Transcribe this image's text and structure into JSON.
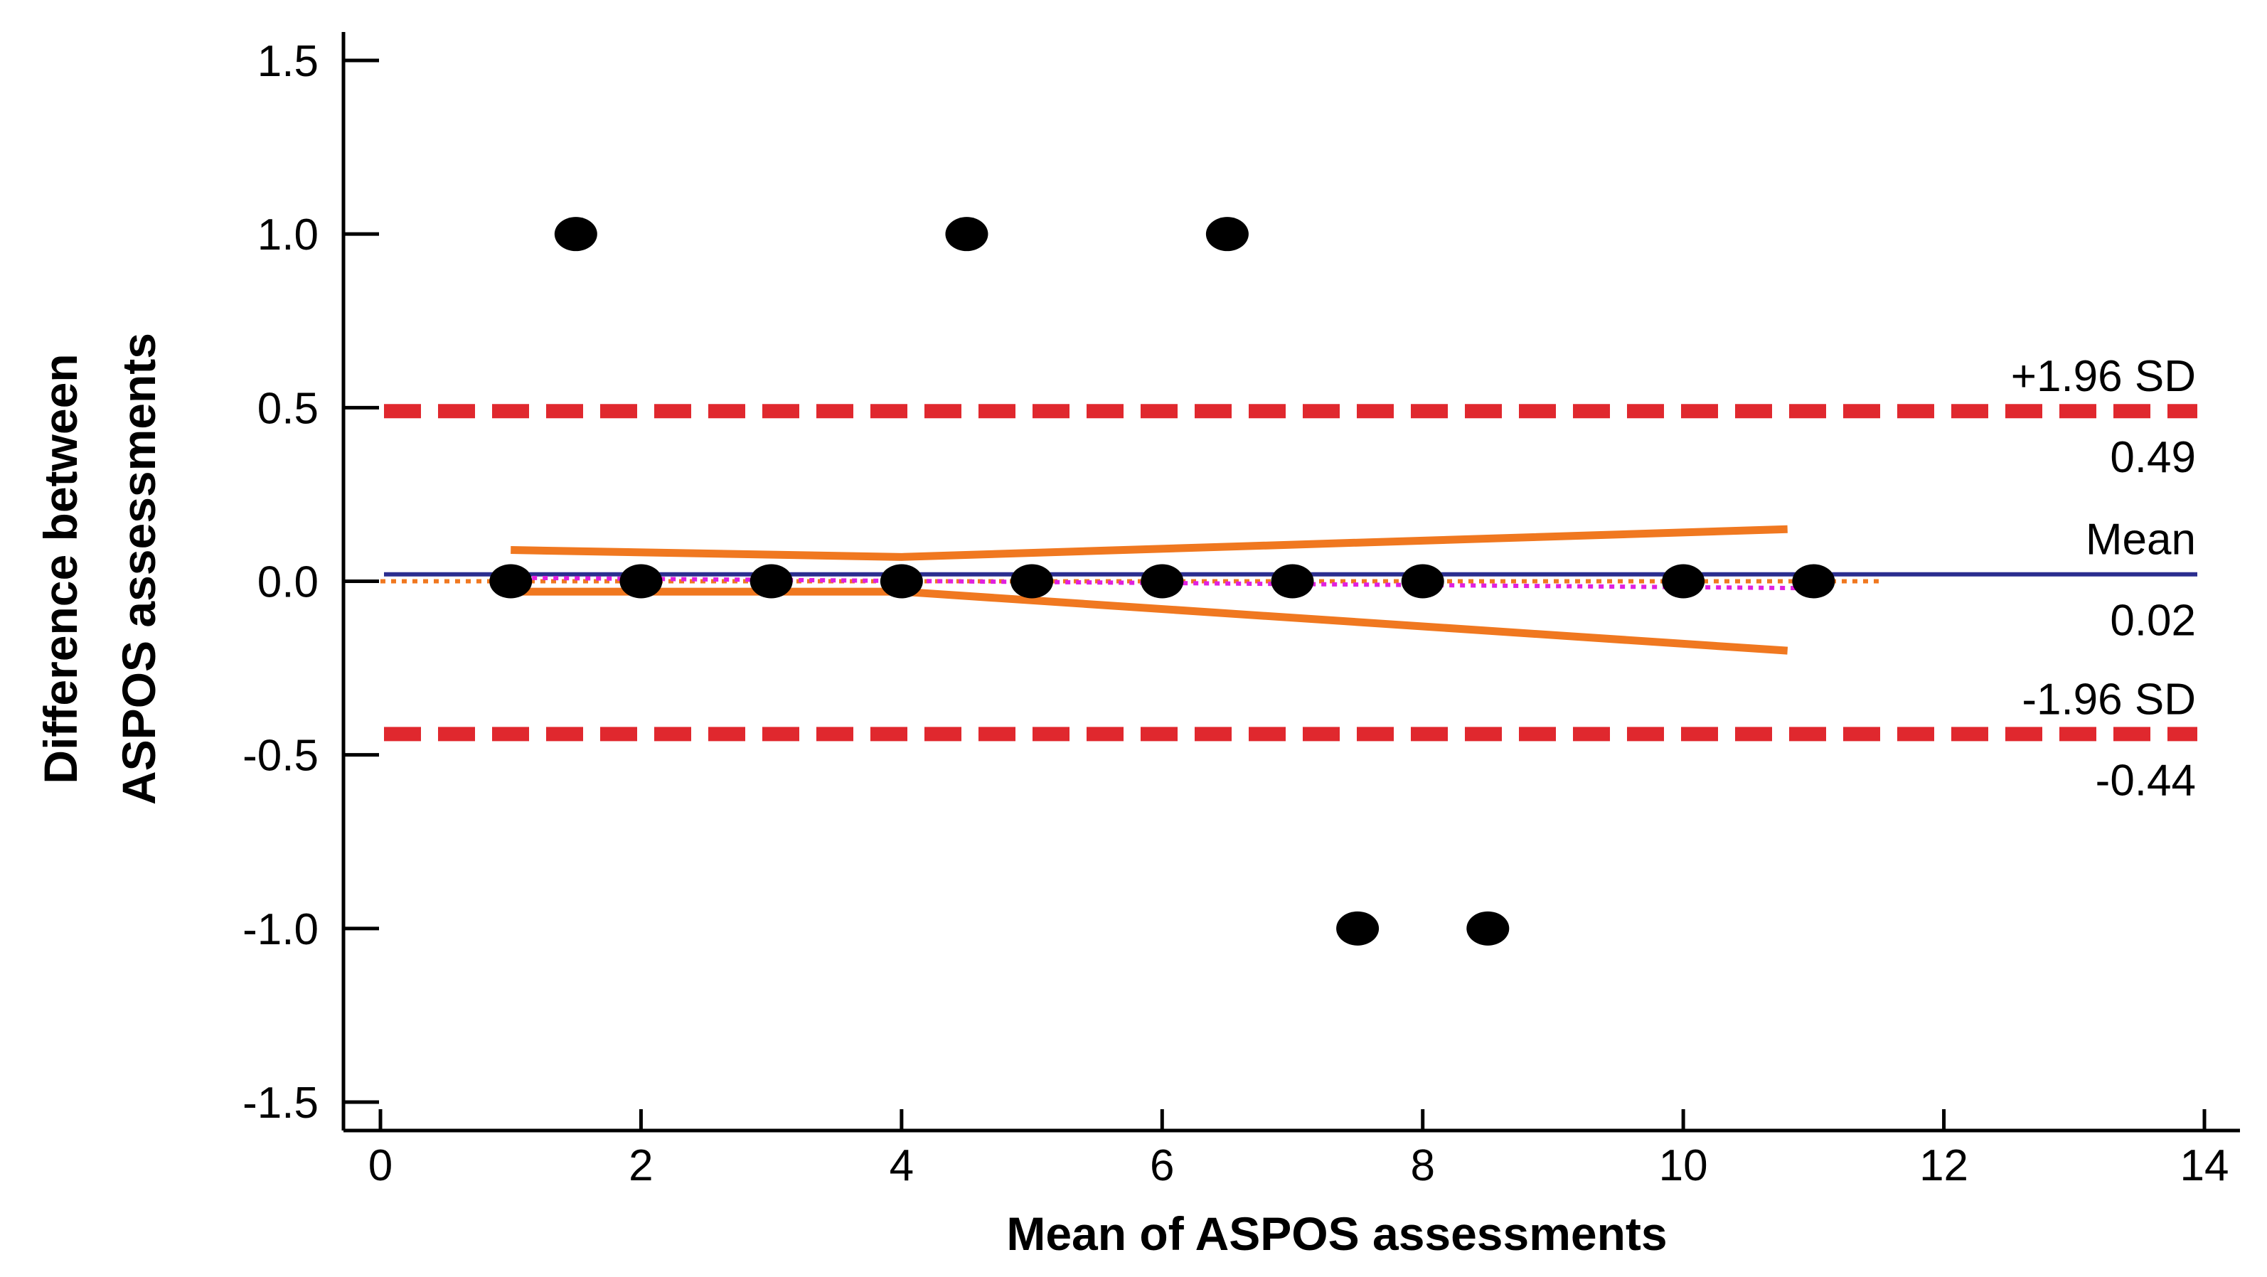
{
  "chart_data": {
    "type": "scatter",
    "title": "",
    "xlabel": "Mean of ASPOS assessments",
    "ylabel_lines": [
      "Difference between",
      "ASPOS assessments"
    ],
    "xlim": [
      0,
      14
    ],
    "ylim": [
      -1.5,
      1.5
    ],
    "x_ticks": [
      0,
      2,
      4,
      6,
      8,
      10,
      12,
      14
    ],
    "x_tick_labels": [
      "0",
      "2",
      "4",
      "6",
      "8",
      "10",
      "12",
      "14"
    ],
    "y_ticks": [
      1.5,
      1.0,
      0.5,
      0.0,
      -0.5,
      -1.0,
      -1.5
    ],
    "y_tick_labels": [
      "1.5",
      "1.0",
      "0.5",
      "0.0",
      "-0.5",
      "-1.0",
      "-1.5"
    ],
    "points": [
      {
        "x": 1.5,
        "y": 1.0
      },
      {
        "x": 4.5,
        "y": 1.0
      },
      {
        "x": 6.5,
        "y": 1.0
      },
      {
        "x": 1,
        "y": 0
      },
      {
        "x": 2,
        "y": 0
      },
      {
        "x": 3,
        "y": 0
      },
      {
        "x": 4,
        "y": 0
      },
      {
        "x": 5,
        "y": 0
      },
      {
        "x": 6,
        "y": 0
      },
      {
        "x": 7,
        "y": 0
      },
      {
        "x": 8,
        "y": 0
      },
      {
        "x": 10,
        "y": 0
      },
      {
        "x": 11,
        "y": 0
      },
      {
        "x": 7.5,
        "y": -1.0
      },
      {
        "x": 8.5,
        "y": -1.0
      }
    ],
    "reference_lines": [
      {
        "name": "upper-loa",
        "label": "+1.96 SD",
        "value_label": "0.49",
        "y": 0.49,
        "color": "#e0282e",
        "style": "dashed"
      },
      {
        "name": "mean",
        "label": "Mean",
        "value_label": "0.02",
        "y": 0.02,
        "color": "#2b2e8f",
        "style": "solid"
      },
      {
        "name": "lower-loa",
        "label": "-1.96 SD",
        "value_label": "-0.44",
        "y": -0.44,
        "color": "#e0282e",
        "style": "dashed"
      }
    ],
    "regression_line": {
      "x": [
        0,
        11.5
      ],
      "y": [
        0.0,
        0.0
      ],
      "color": "#f07820",
      "style": "dotted"
    },
    "trend_line": {
      "x": [
        1,
        11
      ],
      "y": [
        0.01,
        -0.02
      ],
      "color": "#e020e0",
      "style": "dotted"
    },
    "confidence_band": {
      "upper": {
        "x": [
          1,
          4,
          10.8
        ],
        "y": [
          0.09,
          0.07,
          0.15
        ]
      },
      "lower": {
        "x": [
          1,
          4,
          10.8
        ],
        "y": [
          -0.03,
          -0.03,
          -0.2
        ]
      },
      "color": "#f07820"
    },
    "colors": {
      "points": "#000000",
      "axis": "#000000"
    }
  }
}
